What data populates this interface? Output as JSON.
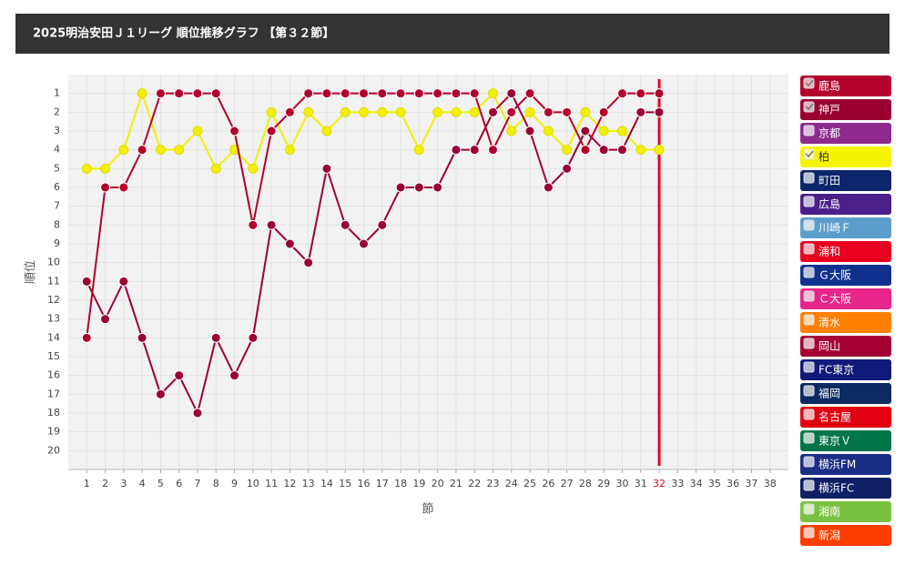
{
  "chart_data": {
    "type": "line",
    "title": "2025明治安田Ｊ１リーグ 順位推移グラフ 【第３２節】",
    "x_label": "節",
    "y_label": "順位",
    "x": [
      1,
      2,
      3,
      4,
      5,
      6,
      7,
      8,
      9,
      10,
      11,
      12,
      13,
      14,
      15,
      16,
      17,
      18,
      19,
      20,
      21,
      22,
      23,
      24,
      25,
      26,
      27,
      28,
      29,
      30,
      31,
      32
    ],
    "series": [
      {
        "name": "柏",
        "color": "#f2f000",
        "values": [
          5,
          5,
          4,
          1,
          4,
          4,
          3,
          5,
          4,
          5,
          2,
          4,
          2,
          3,
          2,
          2,
          2,
          2,
          4,
          2,
          2,
          2,
          1,
          3,
          2,
          3,
          4,
          2,
          3,
          3,
          4,
          4
        ]
      },
      {
        "name": "神戸",
        "color": "#9a0032",
        "values": [
          11,
          13,
          11,
          14,
          17,
          16,
          18,
          14,
          16,
          14,
          8,
          9,
          10,
          5,
          8,
          9,
          8,
          6,
          6,
          6,
          4,
          4,
          2,
          1,
          3,
          6,
          5,
          3,
          4,
          4,
          2,
          2
        ]
      },
      {
        "name": "鹿島",
        "color": "#b3002c",
        "values": [
          14,
          6,
          6,
          4,
          1,
          1,
          1,
          1,
          3,
          8,
          3,
          2,
          1,
          1,
          1,
          1,
          1,
          1,
          1,
          1,
          1,
          1,
          4,
          2,
          1,
          2,
          2,
          4,
          2,
          1,
          1,
          1
        ]
      }
    ],
    "xlim": [
      0,
      39
    ],
    "xticks": [
      1,
      2,
      3,
      4,
      5,
      6,
      7,
      8,
      9,
      10,
      11,
      12,
      13,
      14,
      15,
      16,
      17,
      18,
      19,
      20,
      21,
      22,
      23,
      24,
      25,
      26,
      27,
      28,
      29,
      30,
      31,
      32,
      33,
      34,
      35,
      36,
      37,
      38
    ],
    "ylim": [
      21,
      0
    ],
    "inverted_y": true,
    "yticks": [
      1,
      2,
      3,
      4,
      5,
      6,
      7,
      8,
      9,
      10,
      11,
      12,
      13,
      14,
      15,
      16,
      17,
      18,
      19,
      20
    ],
    "grid": true,
    "current_round": 32,
    "current_color": "#e8001c",
    "legend": [
      {
        "name": "鹿島",
        "color": "#b3002c",
        "checked": true
      },
      {
        "name": "神戸",
        "color": "#9a0032",
        "checked": true
      },
      {
        "name": "京都",
        "color": "#8e2a8e",
        "checked": false
      },
      {
        "name": "柏",
        "color": "#f5f500",
        "checked": true
      },
      {
        "name": "町田",
        "color": "#0c256b",
        "checked": false
      },
      {
        "name": "広島",
        "color": "#4b1e8a",
        "checked": false
      },
      {
        "name": "川崎Ｆ",
        "color": "#5c9ecb",
        "checked": false
      },
      {
        "name": "浦和",
        "color": "#e8001f",
        "checked": false
      },
      {
        "name": "Ｇ大阪",
        "color": "#11318f",
        "checked": false
      },
      {
        "name": "Ｃ大阪",
        "color": "#e8258a",
        "checked": false
      },
      {
        "name": "清水",
        "color": "#ff7f00",
        "checked": false
      },
      {
        "name": "岡山",
        "color": "#a50034",
        "checked": false
      },
      {
        "name": "FC東京",
        "color": "#101a7a",
        "checked": false
      },
      {
        "name": "福岡",
        "color": "#0b2a62",
        "checked": false
      },
      {
        "name": "名古屋",
        "color": "#e00010",
        "checked": false
      },
      {
        "name": "東京Ｖ",
        "color": "#00754a",
        "checked": false
      },
      {
        "name": "横浜FM",
        "color": "#1a2d86",
        "checked": false
      },
      {
        "name": "横浜FC",
        "color": "#0e1f66",
        "checked": false
      },
      {
        "name": "湘南",
        "color": "#7ac142",
        "checked": false
      },
      {
        "name": "新潟",
        "color": "#ff3d00",
        "checked": false
      }
    ]
  }
}
